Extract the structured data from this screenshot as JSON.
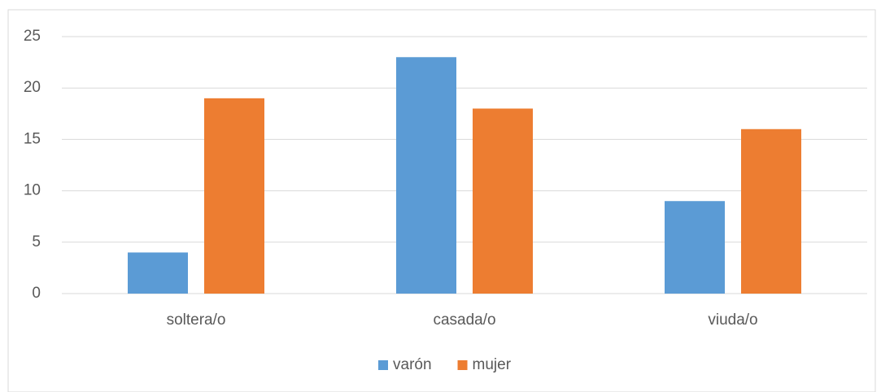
{
  "chart_data": {
    "type": "bar",
    "categories": [
      "soltera/o",
      "casada/o",
      "viuda/o"
    ],
    "series": [
      {
        "name": "varón",
        "color": "#5b9bd5",
        "values": [
          4,
          23,
          9
        ]
      },
      {
        "name": "mujer",
        "color": "#ed7d31",
        "values": [
          19,
          18,
          16
        ]
      }
    ],
    "ylim": [
      0,
      25
    ],
    "yticks": [
      0,
      5,
      10,
      15,
      20,
      25
    ],
    "grid": true,
    "legend": "bottom"
  }
}
